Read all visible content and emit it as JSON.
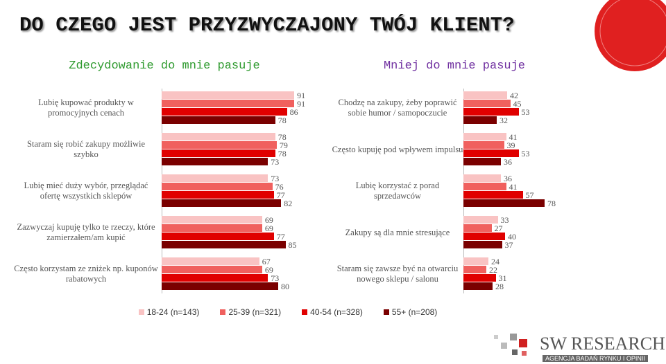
{
  "title": "DO CZEGO JEST PRZYZWYCZAJONY TWÓJ KLIENT?",
  "chart_data": [
    {
      "type": "bar",
      "orientation": "horizontal",
      "title": "Zdecydowanie do mnie pasuje",
      "title_color": "#2e9a2e",
      "categories": [
        "Lubię kupować produkty w promocyjnych cenach",
        "Staram się robić zakupy możliwie szybko",
        "Lubię mieć duży wybór, przeglądać ofertę wszystkich sklepów",
        "Zazwyczaj kupuję tylko te rzeczy, które zamierzałem/am kupić",
        "Często korzystam ze zniżek np. kuponów rabatowych"
      ],
      "series": [
        {
          "name": "18-24 (n=143)",
          "color": "#f9c3c3",
          "values": [
            91,
            78,
            73,
            69,
            67
          ]
        },
        {
          "name": "25-39 (n=321)",
          "color": "#f0605e",
          "values": [
            91,
            79,
            76,
            69,
            69
          ]
        },
        {
          "name": "40-54 (n=328)",
          "color": "#e00000",
          "values": [
            86,
            78,
            77,
            77,
            73
          ]
        },
        {
          "name": "55+ (n=208)",
          "color": "#7a0000",
          "values": [
            78,
            73,
            82,
            85,
            80
          ]
        }
      ]
    },
    {
      "type": "bar",
      "orientation": "horizontal",
      "title": "Mniej do mnie pasuje",
      "title_color": "#7030a0",
      "categories": [
        "Chodzę na zakupy, żeby poprawić sobie humor / samopoczucie",
        "Często kupuję pod wpływem impulsu",
        "Lubię korzystać z porad sprzedawców",
        "Zakupy są dla mnie stresujące",
        "Staram się zawsze być na otwarciu nowego sklepu / salonu"
      ],
      "series": [
        {
          "color": "#f9c3c3",
          "values": [
            42,
            41,
            36,
            33,
            24
          ]
        },
        {
          "color": "#f0605e",
          "values": [
            45,
            39,
            41,
            27,
            22
          ]
        },
        {
          "color": "#e00000",
          "values": [
            53,
            53,
            57,
            40,
            31
          ]
        },
        {
          "color": "#7a0000",
          "values": [
            32,
            36,
            78,
            37,
            28
          ]
        }
      ]
    }
  ],
  "logo": {
    "name": "SW RESEARCH",
    "tagline": "AGENCJA BADAŃ RYNKU I OPINII"
  }
}
